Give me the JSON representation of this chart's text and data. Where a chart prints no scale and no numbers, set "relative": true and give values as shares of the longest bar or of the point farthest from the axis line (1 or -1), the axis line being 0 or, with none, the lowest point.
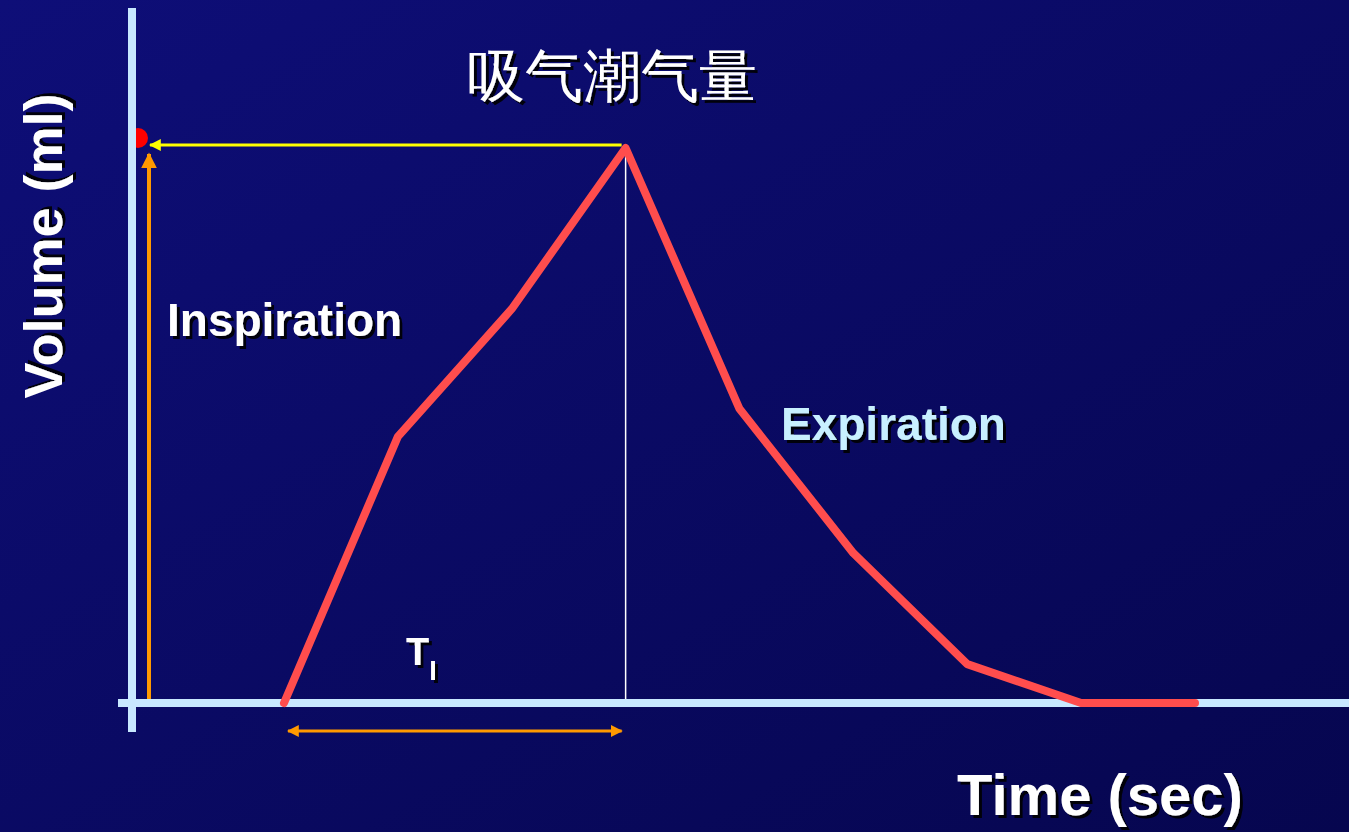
{
  "chart_data": {
    "type": "line",
    "title": "吸气潮气量",
    "xlabel": "Time (sec)",
    "ylabel": "Volume (ml)",
    "relative": true,
    "categories": [
      null,
      null,
      null,
      null,
      null,
      null,
      null,
      null,
      null
    ],
    "series": [
      {
        "color": "#ff4d4d",
        "values": [
          0,
          0.48,
          0.71,
          1,
          0.53,
          0.27,
          0.07,
          0,
          0
        ]
      }
    ],
    "annotations": [
      "Inspiration",
      "Expiration",
      "T$_{I}$"
    ]
  }
}
